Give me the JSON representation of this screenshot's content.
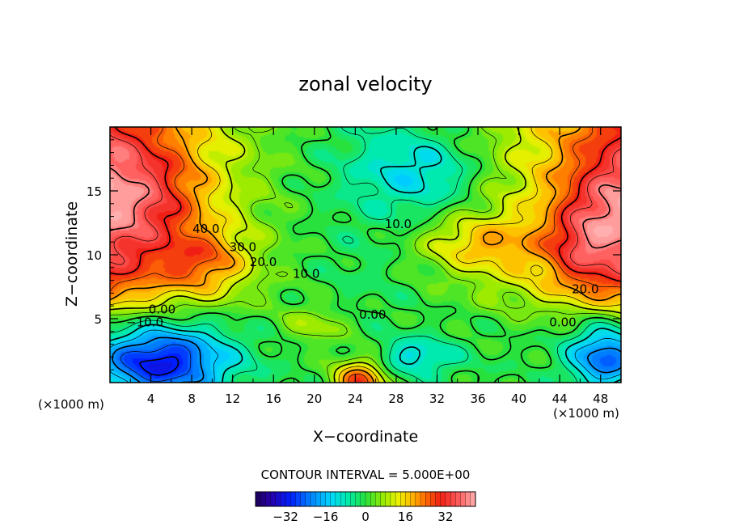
{
  "chart_data": {
    "type": "heatmap",
    "title": "zonal velocity",
    "xlabel": "X−coordinate",
    "ylabel": "Z−coordinate",
    "x_unit_left": "(×1000 m)",
    "x_unit_right": "(×1000 m)",
    "xlim": [
      0,
      50
    ],
    "ylim": [
      0,
      20
    ],
    "x_ticks": [
      4,
      8,
      12,
      16,
      20,
      24,
      28,
      32,
      36,
      40,
      44,
      48
    ],
    "x_tick_labels": [
      "4",
      "8",
      "12",
      "16",
      "20",
      "24",
      "28",
      "32",
      "36",
      "40",
      "44",
      "48"
    ],
    "y_ticks": [
      5,
      10,
      15
    ],
    "y_tick_labels": [
      "5",
      "10",
      "15"
    ],
    "contour_interval_text": "CONTOUR INTERVAL = 5.000E+00",
    "contour_labels": [
      {
        "text": "40.0",
        "x": 9.4,
        "z": 11.7
      },
      {
        "text": "30.0",
        "x": 13.0,
        "z": 10.3
      },
      {
        "text": "20.0",
        "x": 15.0,
        "z": 9.1
      },
      {
        "text": "10.0",
        "x": 19.2,
        "z": 8.2
      },
      {
        "text": "10.0",
        "x": 28.2,
        "z": 12.1
      },
      {
        "text": "0.00",
        "x": 5.1,
        "z": 5.4
      },
      {
        "text": "−10.0",
        "x": 3.4,
        "z": 4.4
      },
      {
        "text": "0.00",
        "x": 25.7,
        "z": 5.0
      },
      {
        "text": "20.0",
        "x": 46.5,
        "z": 7.0
      },
      {
        "text": "0.00",
        "x": 44.3,
        "z": 4.4
      }
    ],
    "colorbar": {
      "min": -44,
      "max": 44,
      "tick_values": [
        -32,
        -16,
        0,
        16,
        32
      ],
      "tick_labels": [
        "−32",
        "−16",
        "0",
        "16",
        "32"
      ]
    },
    "features": [
      {
        "name": "upper-left jet core",
        "x": 2.5,
        "z": 14.3,
        "value": 45
      },
      {
        "name": "upper-right jet core",
        "x": 49,
        "z": 13.5,
        "value": 42
      },
      {
        "name": "left upper jet",
        "x": 8,
        "z": 10,
        "value": 34
      },
      {
        "name": "right upper jet",
        "x": 46,
        "z": 10.5,
        "value": 30
      },
      {
        "name": "mid-level maximum",
        "x": 36,
        "z": 10.8,
        "value": 25
      },
      {
        "name": "lower-left minimum",
        "x": 4.5,
        "z": 1.5,
        "value": -30
      },
      {
        "name": "lower-right minimum",
        "x": 49,
        "z": 2.0,
        "value": -24
      },
      {
        "name": "bottom center maximum",
        "x": 24.5,
        "z": 0.3,
        "value": 24
      },
      {
        "name": "upper center minimum",
        "x": 30.5,
        "z": 17,
        "value": 3
      }
    ]
  }
}
